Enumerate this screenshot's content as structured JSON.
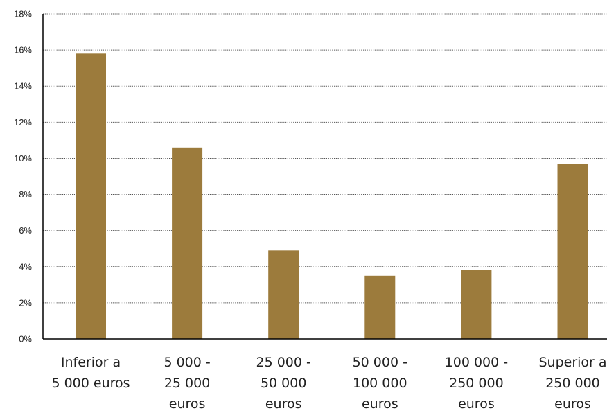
{
  "chart_data": {
    "type": "bar",
    "title": "",
    "xlabel": "",
    "ylabel": "",
    "ylim": [
      0,
      18
    ],
    "y_ticks": [
      "0%",
      "2%",
      "4%",
      "6%",
      "8%",
      "10%",
      "12%",
      "14%",
      "16%",
      "18%"
    ],
    "y_tick_values": [
      0,
      2,
      4,
      6,
      8,
      10,
      12,
      14,
      16,
      18
    ],
    "grid": "horizontal dotted",
    "legend": "none",
    "bar_color": "#9C7B3C",
    "categories": [
      [
        "Inferior a",
        "5 000 euros"
      ],
      [
        "5 000 -",
        "25 000",
        "euros"
      ],
      [
        "25 000 -",
        "50 000",
        "euros"
      ],
      [
        "50 000 -",
        "100 000",
        "euros"
      ],
      [
        "100 000 -",
        "250 000",
        "euros"
      ],
      [
        "Superior a",
        "250 000",
        "euros"
      ]
    ],
    "values": [
      15.8,
      10.6,
      4.9,
      3.5,
      3.8,
      9.7
    ]
  }
}
